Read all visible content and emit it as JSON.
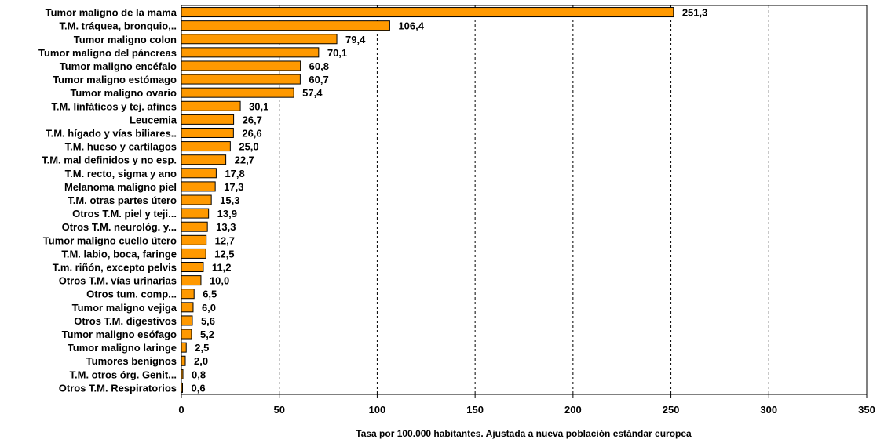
{
  "chart_data": {
    "type": "bar",
    "orientation": "horizontal",
    "categories": [
      "Tumor maligno de la mama",
      "T.M. tráquea, bronquio,..",
      "Tumor maligno colon",
      "Tumor maligno del páncreas",
      "Tumor maligno encéfalo",
      "Tumor maligno estómago",
      "Tumor maligno ovario",
      "T.M. linfáticos y tej. afines",
      "Leucemia",
      "T.M. hígado y vías biliares..",
      "T.M.  hueso y cartílagos",
      "T.M. mal definidos y no esp.",
      "T.M. recto, sigma y ano",
      "Melanoma maligno piel",
      "T.M. otras partes útero",
      "Otros T.M. piel y teji...",
      "Otros T.M. neurológ. y...",
      "Tumor maligno cuello útero",
      "T.M. labio, boca, faringe",
      "T.m. riñón, excepto pelvis",
      "Otros T.M.  vías urinarias",
      "Otros tum. comp...",
      "Tumor maligno vejiga",
      "Otros T.M. digestivos",
      "Tumor maligno esófago",
      "Tumor maligno laringe",
      "Tumores benignos",
      "T.M. otros órg. Genit...",
      "Otros T.M. Respiratorios"
    ],
    "values": [
      251.3,
      106.4,
      79.4,
      70.1,
      60.8,
      60.7,
      57.4,
      30.1,
      26.7,
      26.6,
      25.0,
      22.7,
      17.8,
      17.3,
      15.3,
      13.9,
      13.3,
      12.7,
      12.5,
      11.2,
      10.0,
      6.5,
      6.0,
      5.6,
      5.2,
      2.5,
      2.0,
      0.8,
      0.6
    ],
    "value_labels": [
      "251,3",
      "106,4",
      "79,4",
      "70,1",
      "60,8",
      "60,7",
      "57,4",
      "30,1",
      "26,7",
      "26,6",
      "25,0",
      "22,7",
      "17,8",
      "17,3",
      "15,3",
      "13,9",
      "13,3",
      "12,7",
      "12,5",
      "11,2",
      "10,0",
      "6,5",
      "6,0",
      "5,6",
      "5,2",
      "2,5",
      "2,0",
      "0,8",
      "0,6"
    ],
    "xticks": [
      "0",
      "50",
      "100",
      "150",
      "200",
      "250",
      "300",
      "350"
    ],
    "xlim": [
      0,
      350
    ],
    "xlabel": "Tasa por 100.000 habitantes. Ajustada  a nueva población  estándar europea",
    "grid": "vertical-dashed",
    "legend": "none",
    "colors": {
      "bar_fill": "#FF9900",
      "bar_stroke": "#000000",
      "grid": "#000000"
    }
  }
}
